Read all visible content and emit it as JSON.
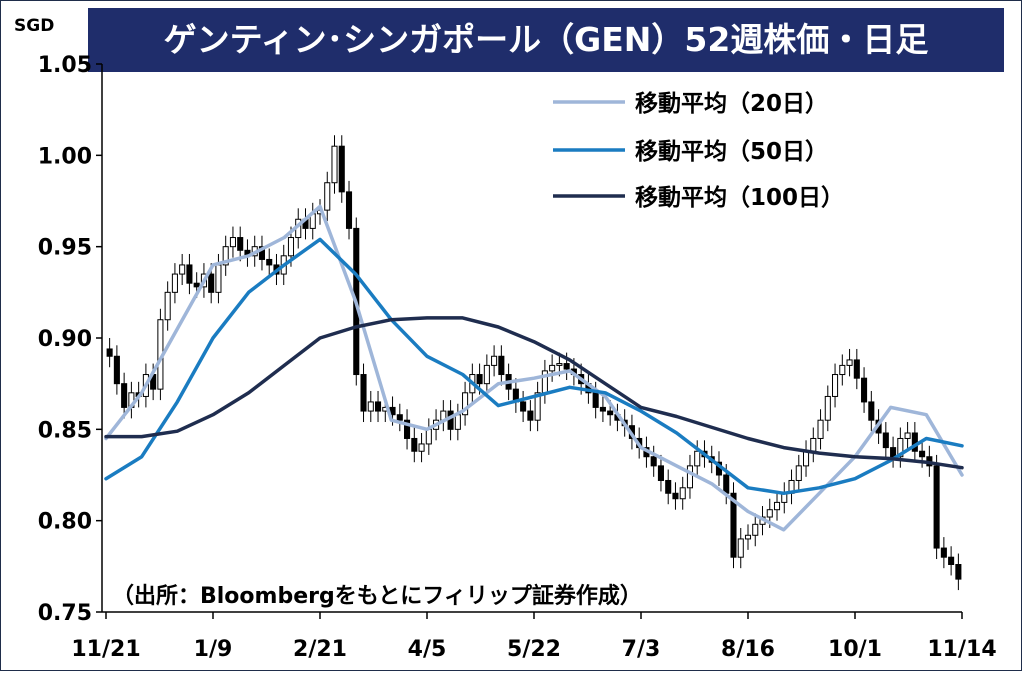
{
  "chart_data": {
    "type": "line",
    "title": "ゲンティン･シンガポール（GEN）52週株価・日足",
    "unit_label": "SGD",
    "ylim": [
      0.75,
      1.05
    ],
    "yticks": [
      "1.05",
      "1.00",
      "0.95",
      "0.90",
      "0.85",
      "0.80",
      "0.75"
    ],
    "ytick_values": [
      1.05,
      1.0,
      0.95,
      0.9,
      0.85,
      0.8,
      0.75
    ],
    "x_labels": [
      "11/21",
      "1/9",
      "2/21",
      "4/5",
      "5/22",
      "7/3",
      "8/16",
      "10/1",
      "11/14"
    ],
    "grid": false,
    "legend_position": "top-right",
    "series": [
      {
        "name": "移動平均（20日）",
        "color": "#9fb6d9",
        "x": [
          "11/21",
          "12/5",
          "12/20",
          "1/9",
          "1/25",
          "2/7",
          "2/21",
          "3/7",
          "3/21",
          "4/5",
          "4/20",
          "5/5",
          "5/22",
          "6/6",
          "6/20",
          "7/3",
          "7/18",
          "8/1",
          "8/16",
          "8/30",
          "9/15",
          "10/1",
          "10/16",
          "10/30",
          "11/14"
        ],
        "values": [
          0.845,
          0.87,
          0.905,
          0.94,
          0.945,
          0.955,
          0.972,
          0.92,
          0.855,
          0.85,
          0.86,
          0.875,
          0.878,
          0.882,
          0.868,
          0.84,
          0.83,
          0.82,
          0.805,
          0.795,
          0.815,
          0.835,
          0.862,
          0.858,
          0.825
        ]
      },
      {
        "name": "移動平均（50日）",
        "color": "#1a7cc1",
        "x": [
          "11/21",
          "12/5",
          "12/20",
          "1/9",
          "1/25",
          "2/7",
          "2/21",
          "3/7",
          "3/21",
          "4/5",
          "4/20",
          "5/5",
          "5/22",
          "6/6",
          "6/20",
          "7/3",
          "7/18",
          "8/1",
          "8/16",
          "8/30",
          "9/15",
          "10/1",
          "10/16",
          "10/30",
          "11/14"
        ],
        "values": [
          0.823,
          0.835,
          0.865,
          0.9,
          0.925,
          0.94,
          0.954,
          0.935,
          0.91,
          0.89,
          0.88,
          0.863,
          0.868,
          0.873,
          0.87,
          0.86,
          0.848,
          0.833,
          0.818,
          0.815,
          0.818,
          0.823,
          0.833,
          0.845,
          0.841
        ]
      },
      {
        "name": "移動平均（100日）",
        "color": "#1f2d4f",
        "x": [
          "11/21",
          "12/5",
          "12/20",
          "1/9",
          "1/25",
          "2/7",
          "2/21",
          "3/7",
          "3/21",
          "4/5",
          "4/20",
          "5/5",
          "5/22",
          "6/6",
          "6/20",
          "7/3",
          "7/18",
          "8/1",
          "8/16",
          "8/30",
          "9/15",
          "10/1",
          "10/16",
          "10/30",
          "11/14"
        ],
        "values": [
          0.846,
          0.846,
          0.849,
          0.858,
          0.87,
          0.885,
          0.9,
          0.906,
          0.91,
          0.911,
          0.911,
          0.906,
          0.898,
          0.888,
          0.875,
          0.862,
          0.857,
          0.851,
          0.845,
          0.84,
          0.837,
          0.835,
          0.834,
          0.832,
          0.829
        ]
      }
    ],
    "candles": {
      "name": "日足",
      "close": [
        0.89,
        0.875,
        0.862,
        0.87,
        0.868,
        0.88,
        0.872,
        0.91,
        0.925,
        0.935,
        0.94,
        0.93,
        0.928,
        0.935,
        0.925,
        0.94,
        0.95,
        0.955,
        0.948,
        0.945,
        0.95,
        0.943,
        0.94,
        0.935,
        0.945,
        0.955,
        0.965,
        0.96,
        0.968,
        0.97,
        0.985,
        1.005,
        0.98,
        0.96,
        0.88,
        0.86,
        0.865,
        0.86,
        0.862,
        0.858,
        0.855,
        0.845,
        0.838,
        0.842,
        0.85,
        0.855,
        0.86,
        0.85,
        0.858,
        0.87,
        0.88,
        0.875,
        0.885,
        0.89,
        0.88,
        0.872,
        0.865,
        0.86,
        0.855,
        0.87,
        0.882,
        0.885,
        0.886,
        0.883,
        0.88,
        0.875,
        0.87,
        0.862,
        0.86,
        0.858,
        0.855,
        0.852,
        0.845,
        0.84,
        0.835,
        0.83,
        0.822,
        0.815,
        0.812,
        0.818,
        0.83,
        0.838,
        0.835,
        0.832,
        0.825,
        0.815,
        0.78,
        0.79,
        0.792,
        0.798,
        0.802,
        0.806,
        0.81,
        0.815,
        0.822,
        0.83,
        0.838,
        0.845,
        0.855,
        0.868,
        0.88,
        0.885,
        0.888,
        0.878,
        0.865,
        0.855,
        0.848,
        0.84,
        0.835,
        0.845,
        0.848,
        0.838,
        0.835,
        0.83,
        0.785,
        0.78,
        0.776,
        0.768
      ]
    }
  },
  "legend": {
    "ma20": "移動平均（20日）",
    "ma50": "移動平均（50日）",
    "ma100": "移動平均（100日）"
  },
  "source": "（出所：Bloombergをもとにフィリップ証券作成）"
}
